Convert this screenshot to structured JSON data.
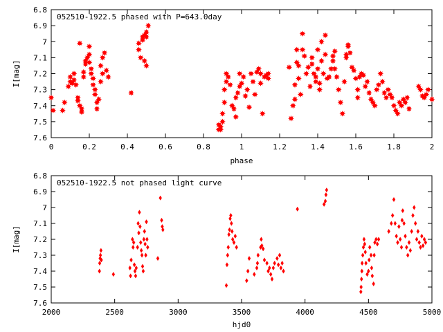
{
  "colors": {
    "points": "#ff0000",
    "axes": "#000000",
    "background": "#ffffff"
  },
  "chart_data": [
    {
      "type": "scatter",
      "title": "052510-1922.5 phased with P=643.0day",
      "xlabel": "phase",
      "ylabel": "I[mag]",
      "xlim": [
        0,
        2
      ],
      "ylim": [
        6.8,
        7.6
      ],
      "y_inverted": true,
      "grid": false,
      "legend": "none",
      "marker": "star",
      "xticks": [
        "0",
        "0.2",
        "0.4",
        "0.6",
        "0.8",
        "1",
        "1.2",
        "1.4",
        "1.6",
        "1.8",
        "2"
      ],
      "yticks": [
        "6.8",
        "6.9",
        "7",
        "7.1",
        "7.2",
        "7.3",
        "7.4",
        "7.5",
        "7.6"
      ],
      "points": [
        [
          0.0,
          7.35
        ],
        [
          0.01,
          7.43
        ],
        [
          0.06,
          7.43
        ],
        [
          0.07,
          7.38
        ],
        [
          0.09,
          7.28
        ],
        [
          0.1,
          7.22
        ],
        [
          0.1,
          7.25
        ],
        [
          0.11,
          7.26
        ],
        [
          0.12,
          7.2
        ],
        [
          0.12,
          7.24
        ],
        [
          0.13,
          7.27
        ],
        [
          0.14,
          7.37
        ],
        [
          0.14,
          7.35
        ],
        [
          0.15,
          7.4
        ],
        [
          0.15,
          7.01
        ],
        [
          0.16,
          7.44
        ],
        [
          0.16,
          7.42
        ],
        [
          0.17,
          7.22
        ],
        [
          0.17,
          7.19
        ],
        [
          0.18,
          7.14
        ],
        [
          0.18,
          7.12
        ],
        [
          0.19,
          7.1
        ],
        [
          0.2,
          7.03
        ],
        [
          0.2,
          7.08
        ],
        [
          0.2,
          7.13
        ],
        [
          0.21,
          7.17
        ],
        [
          0.21,
          7.2
        ],
        [
          0.22,
          7.23
        ],
        [
          0.22,
          7.27
        ],
        [
          0.23,
          7.3
        ],
        [
          0.23,
          7.33
        ],
        [
          0.24,
          7.38
        ],
        [
          0.24,
          7.42
        ],
        [
          0.25,
          7.36
        ],
        [
          0.26,
          7.15
        ],
        [
          0.26,
          7.25
        ],
        [
          0.27,
          7.1
        ],
        [
          0.27,
          7.2
        ],
        [
          0.28,
          7.07
        ],
        [
          0.29,
          7.18
        ],
        [
          0.3,
          7.22
        ],
        [
          0.42,
          7.32
        ],
        [
          0.46,
          7.05
        ],
        [
          0.46,
          7.01
        ],
        [
          0.47,
          7.1
        ],
        [
          0.48,
          6.97
        ],
        [
          0.48,
          6.99
        ],
        [
          0.49,
          7.12
        ],
        [
          0.49,
          6.96
        ],
        [
          0.5,
          7.15
        ],
        [
          0.5,
          6.94
        ],
        [
          0.5,
          6.97
        ],
        [
          0.51,
          6.9
        ],
        [
          0.88,
          7.52
        ],
        [
          0.88,
          7.55
        ],
        [
          0.89,
          7.53
        ],
        [
          0.89,
          7.55
        ],
        [
          0.9,
          7.5
        ],
        [
          0.9,
          7.45
        ],
        [
          0.91,
          7.38
        ],
        [
          0.91,
          7.3
        ],
        [
          0.92,
          7.25
        ],
        [
          0.92,
          7.2
        ],
        [
          0.93,
          7.22
        ],
        [
          0.94,
          7.27
        ],
        [
          0.95,
          7.4
        ],
        [
          0.96,
          7.42
        ],
        [
          0.97,
          7.47
        ],
        [
          0.97,
          7.35
        ],
        [
          0.98,
          7.32
        ],
        [
          0.99,
          7.28
        ],
        [
          0.99,
          7.2
        ],
        [
          1.0,
          7.26
        ],
        [
          1.01,
          7.22
        ],
        [
          1.02,
          7.34
        ],
        [
          1.03,
          7.3
        ],
        [
          1.04,
          7.41
        ],
        [
          1.05,
          7.2
        ],
        [
          1.06,
          7.25
        ],
        [
          1.07,
          7.33
        ],
        [
          1.08,
          7.19
        ],
        [
          1.09,
          7.17
        ],
        [
          1.1,
          7.2
        ],
        [
          1.1,
          7.26
        ],
        [
          1.11,
          7.45
        ],
        [
          1.12,
          7.22
        ],
        [
          1.13,
          7.21
        ],
        [
          1.14,
          7.23
        ],
        [
          1.14,
          7.2
        ],
        [
          1.25,
          7.16
        ],
        [
          1.26,
          7.48
        ],
        [
          1.27,
          7.4
        ],
        [
          1.28,
          7.36
        ],
        [
          1.28,
          7.27
        ],
        [
          1.29,
          7.05
        ],
        [
          1.29,
          7.13
        ],
        [
          1.3,
          7.15
        ],
        [
          1.3,
          7.23
        ],
        [
          1.31,
          7.33
        ],
        [
          1.32,
          6.95
        ],
        [
          1.32,
          7.05
        ],
        [
          1.33,
          7.09
        ],
        [
          1.34,
          7.2
        ],
        [
          1.35,
          7.16
        ],
        [
          1.36,
          7.28
        ],
        [
          1.37,
          7.1
        ],
        [
          1.37,
          7.14
        ],
        [
          1.38,
          7.2
        ],
        [
          1.39,
          7.25
        ],
        [
          1.39,
          7.22
        ],
        [
          1.4,
          7.17
        ],
        [
          1.4,
          7.05
        ],
        [
          1.41,
          7.26
        ],
        [
          1.41,
          7.3
        ],
        [
          1.42,
          7.0
        ],
        [
          1.42,
          7.12
        ],
        [
          1.43,
          7.2
        ],
        [
          1.44,
          6.96
        ],
        [
          1.44,
          7.08
        ],
        [
          1.45,
          7.23
        ],
        [
          1.46,
          7.22
        ],
        [
          1.47,
          7.17
        ],
        [
          1.48,
          7.12
        ],
        [
          1.48,
          7.09
        ],
        [
          1.49,
          7.17
        ],
        [
          1.49,
          7.06
        ],
        [
          1.5,
          7.22
        ],
        [
          1.51,
          7.3
        ],
        [
          1.52,
          7.38
        ],
        [
          1.53,
          7.45
        ],
        [
          1.54,
          7.25
        ],
        [
          1.55,
          7.08
        ],
        [
          1.55,
          7.1
        ],
        [
          1.56,
          7.03
        ],
        [
          1.56,
          7.02
        ],
        [
          1.57,
          7.07
        ],
        [
          1.58,
          7.16
        ],
        [
          1.59,
          7.18
        ],
        [
          1.6,
          7.23
        ],
        [
          1.61,
          7.3
        ],
        [
          1.61,
          7.35
        ],
        [
          1.62,
          7.22
        ],
        [
          1.63,
          7.2
        ],
        [
          1.64,
          7.21
        ],
        [
          1.65,
          7.28
        ],
        [
          1.66,
          7.25
        ],
        [
          1.67,
          7.32
        ],
        [
          1.68,
          7.36
        ],
        [
          1.69,
          7.38
        ],
        [
          1.7,
          7.4
        ],
        [
          1.71,
          7.3
        ],
        [
          1.72,
          7.27
        ],
        [
          1.73,
          7.2
        ],
        [
          1.74,
          7.25
        ],
        [
          1.75,
          7.32
        ],
        [
          1.76,
          7.35
        ],
        [
          1.77,
          7.3
        ],
        [
          1.78,
          7.33
        ],
        [
          1.79,
          7.35
        ],
        [
          1.8,
          7.4
        ],
        [
          1.81,
          7.43
        ],
        [
          1.82,
          7.45
        ],
        [
          1.83,
          7.38
        ],
        [
          1.84,
          7.4
        ],
        [
          1.85,
          7.36
        ],
        [
          1.86,
          7.38
        ],
        [
          1.87,
          7.35
        ],
        [
          1.88,
          7.42
        ],
        [
          1.93,
          7.28
        ],
        [
          1.94,
          7.3
        ],
        [
          1.95,
          7.34
        ],
        [
          1.96,
          7.35
        ],
        [
          1.97,
          7.33
        ],
        [
          1.98,
          7.3
        ],
        [
          2.0,
          7.36
        ]
      ]
    },
    {
      "type": "scatter",
      "title": "052510-1922.5 not phased light curve",
      "xlabel": "hjd0",
      "ylabel": "I[mag]",
      "xlim": [
        2000,
        5000
      ],
      "ylim": [
        6.8,
        7.6
      ],
      "y_inverted": true,
      "grid": false,
      "legend": "none",
      "marker": "diamond",
      "xticks": [
        "2000",
        "2500",
        "3000",
        "3500",
        "4000",
        "4500",
        "5000"
      ],
      "yticks": [
        "6.8",
        "6.9",
        "7",
        "7.1",
        "7.2",
        "7.3",
        "7.4",
        "7.5",
        "7.6"
      ],
      "points": [
        [
          2380,
          7.4
        ],
        [
          2382,
          7.35
        ],
        [
          2385,
          7.32
        ],
        [
          2388,
          7.3
        ],
        [
          2392,
          7.27
        ],
        [
          2395,
          7.33
        ],
        [
          2490,
          7.42
        ],
        [
          2620,
          7.38
        ],
        [
          2625,
          7.43
        ],
        [
          2630,
          7.33
        ],
        [
          2640,
          7.2
        ],
        [
          2645,
          7.25
        ],
        [
          2650,
          7.22
        ],
        [
          2655,
          7.36
        ],
        [
          2660,
          7.4
        ],
        [
          2665,
          7.43
        ],
        [
          2670,
          7.38
        ],
        [
          2680,
          7.25
        ],
        [
          2685,
          7.1
        ],
        [
          2690,
          7.16
        ],
        [
          2695,
          7.03
        ],
        [
          2700,
          7.12
        ],
        [
          2705,
          7.22
        ],
        [
          2710,
          7.27
        ],
        [
          2715,
          7.3
        ],
        [
          2720,
          7.37
        ],
        [
          2725,
          7.4
        ],
        [
          2730,
          7.2
        ],
        [
          2735,
          7.15
        ],
        [
          2740,
          7.23
        ],
        [
          2745,
          7.3
        ],
        [
          2750,
          7.09
        ],
        [
          2755,
          7.2
        ],
        [
          2760,
          7.25
        ],
        [
          2840,
          7.32
        ],
        [
          2860,
          6.94
        ],
        [
          2870,
          7.08
        ],
        [
          2875,
          7.12
        ],
        [
          2880,
          7.14
        ],
        [
          3380,
          7.49
        ],
        [
          3385,
          7.36
        ],
        [
          3390,
          7.3
        ],
        [
          3395,
          7.25
        ],
        [
          3400,
          7.17
        ],
        [
          3405,
          7.14
        ],
        [
          3410,
          7.07
        ],
        [
          3415,
          7.05
        ],
        [
          3420,
          7.1
        ],
        [
          3425,
          7.15
        ],
        [
          3430,
          7.2
        ],
        [
          3440,
          7.22
        ],
        [
          3450,
          7.18
        ],
        [
          3460,
          7.25
        ],
        [
          3540,
          7.46
        ],
        [
          3550,
          7.4
        ],
        [
          3560,
          7.32
        ],
        [
          3600,
          7.42
        ],
        [
          3620,
          7.38
        ],
        [
          3625,
          7.35
        ],
        [
          3630,
          7.3
        ],
        [
          3650,
          7.25
        ],
        [
          3655,
          7.2
        ],
        [
          3660,
          7.24
        ],
        [
          3670,
          7.26
        ],
        [
          3680,
          7.33
        ],
        [
          3700,
          7.35
        ],
        [
          3710,
          7.4
        ],
        [
          3720,
          7.38
        ],
        [
          3730,
          7.42
        ],
        [
          3740,
          7.45
        ],
        [
          3750,
          7.38
        ],
        [
          3760,
          7.35
        ],
        [
          3780,
          7.32
        ],
        [
          3790,
          7.36
        ],
        [
          3800,
          7.3
        ],
        [
          3810,
          7.38
        ],
        [
          3820,
          7.35
        ],
        [
          3830,
          7.4
        ],
        [
          3940,
          7.01
        ],
        [
          4150,
          6.98
        ],
        [
          4160,
          6.96
        ],
        [
          4165,
          6.92
        ],
        [
          4170,
          6.89
        ],
        [
          4440,
          7.53
        ],
        [
          4442,
          7.5
        ],
        [
          4445,
          7.45
        ],
        [
          4448,
          7.4
        ],
        [
          4450,
          7.35
        ],
        [
          4455,
          7.3
        ],
        [
          4460,
          7.25
        ],
        [
          4465,
          7.2
        ],
        [
          4470,
          7.23
        ],
        [
          4475,
          7.28
        ],
        [
          4480,
          7.35
        ],
        [
          4490,
          7.42
        ],
        [
          4500,
          7.4
        ],
        [
          4505,
          7.33
        ],
        [
          4510,
          7.25
        ],
        [
          4520,
          7.3
        ],
        [
          4525,
          7.38
        ],
        [
          4530,
          7.43
        ],
        [
          4540,
          7.48
        ],
        [
          4545,
          7.3
        ],
        [
          4550,
          7.22
        ],
        [
          4560,
          7.2
        ],
        [
          4570,
          7.23
        ],
        [
          4580,
          7.2
        ],
        [
          4660,
          7.15
        ],
        [
          4680,
          7.1
        ],
        [
          4690,
          7.05
        ],
        [
          4700,
          6.95
        ],
        [
          4710,
          7.1
        ],
        [
          4720,
          7.18
        ],
        [
          4730,
          7.22
        ],
        [
          4740,
          7.12
        ],
        [
          4750,
          7.2
        ],
        [
          4760,
          7.25
        ],
        [
          4765,
          7.08
        ],
        [
          4770,
          7.02
        ],
        [
          4780,
          7.1
        ],
        [
          4790,
          7.18
        ],
        [
          4800,
          7.25
        ],
        [
          4810,
          7.3
        ],
        [
          4820,
          7.22
        ],
        [
          4830,
          7.27
        ],
        [
          4840,
          7.15
        ],
        [
          4850,
          7.05
        ],
        [
          4860,
          7.0
        ],
        [
          4870,
          7.1
        ],
        [
          4880,
          7.2
        ],
        [
          4890,
          7.15
        ],
        [
          4900,
          7.22
        ],
        [
          4910,
          7.25
        ],
        [
          4920,
          7.18
        ],
        [
          4930,
          7.24
        ],
        [
          4940,
          7.2
        ],
        [
          4950,
          7.22
        ]
      ]
    }
  ]
}
